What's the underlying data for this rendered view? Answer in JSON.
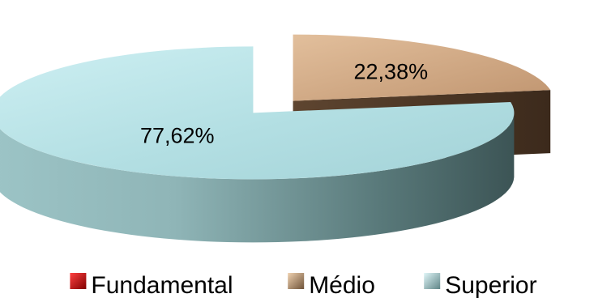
{
  "chart_data": {
    "type": "pie",
    "style": "3d-exploded",
    "categories": [
      "Fundamental",
      "Médio",
      "Superior"
    ],
    "values": [
      0,
      22.38,
      77.62
    ],
    "data_labels": [
      "",
      "22,38%",
      "77,62%"
    ],
    "colors": [
      "#c00000",
      "#c9a37f",
      "#a9d7dc"
    ],
    "legend_position": "bottom",
    "title": ""
  }
}
